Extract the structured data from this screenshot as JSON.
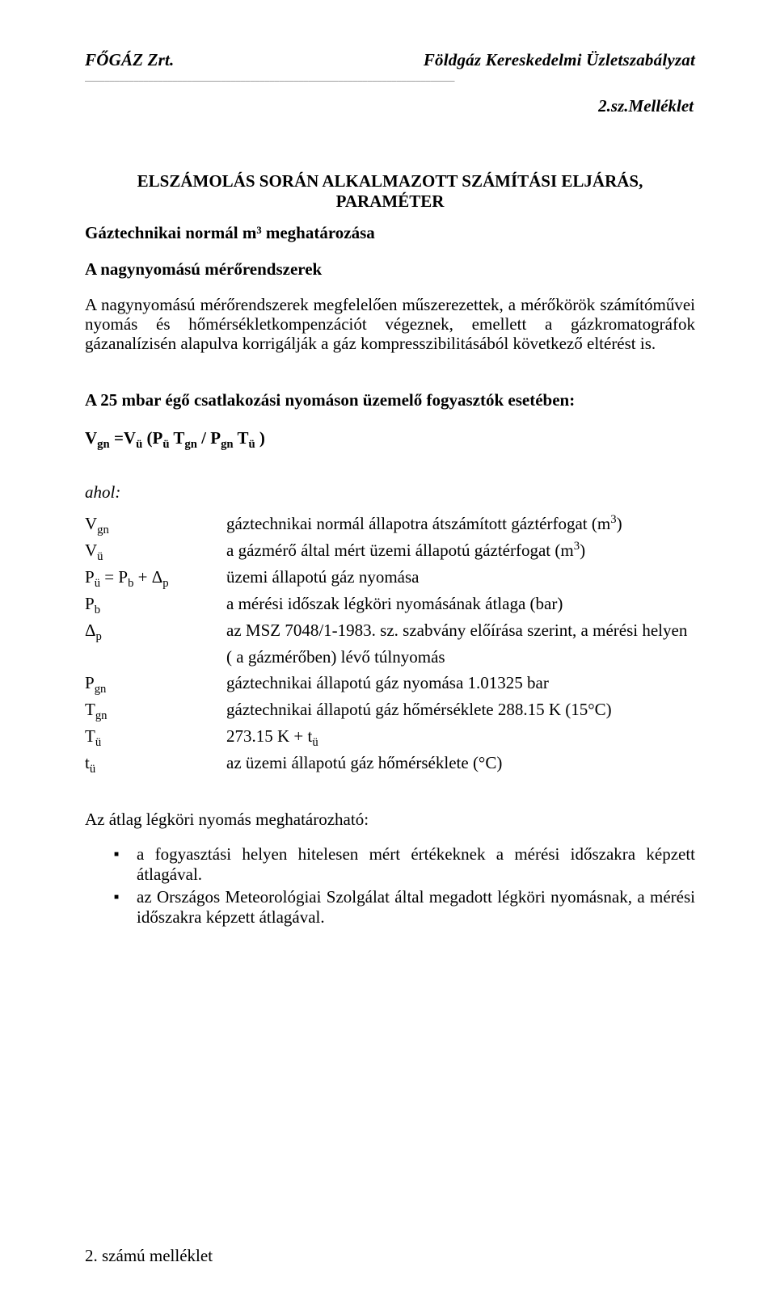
{
  "header": {
    "left": "FŐGÁZ Zrt.",
    "right": "Földgáz Kereskedelmi Üzletszabályzat"
  },
  "attachment_label": "2.sz.Melléklet",
  "title_line1": "ELSZÁMOLÁS SORÁN ALKALMAZOTT SZÁMÍTÁSI ELJÁRÁS,",
  "title_line2": "PARAMÉTER",
  "subtitle": "Gáztechnikai normál m³ meghatározása",
  "section_heading": "A nagynyomású mérőrendszerek",
  "body_para": "A nagynyomású mérőrendszerek megfelelően műszerezettek, a mérőkörök számítóművei nyomás és hőmérsékletkompenzációt végeznek, emellett a gázkromatográfok gázanalízisén alapulva korrigálják a gáz kompresszibilitásából következő eltérést is.",
  "case_heading": "A 25 mbar égő csatlakozási nyomáson üzemelő fogyasztók esetében:",
  "formula": {
    "prefix": "V",
    "s1": "gn",
    "eq": " =V",
    "s2": "ü",
    "open": "  (P",
    "s3": "ü",
    "t1": " T",
    "s4": "gn",
    "div": " / P",
    "s5": "gn",
    "t2": " T",
    "s6": "ü",
    "close": " )"
  },
  "where": "ahol:",
  "defs": [
    {
      "sym_pre": "V",
      "sym_sub": "gn",
      "sym_post": "",
      "desc_pre": "gáztechnikai normál állapotra átszámított gáztérfogat (m",
      "desc_sup": "3",
      "desc_post": ")"
    },
    {
      "sym_pre": "V",
      "sym_sub": "ü",
      "sym_post": "",
      "desc_pre": "a gázmérő által mért üzemi állapotú gáztérfogat (m",
      "desc_sup": "3",
      "desc_post": ")"
    },
    {
      "sym_pre": "P",
      "sym_sub": "ü",
      "sym_mid": " = P",
      "sym_sub2": "b",
      "sym_mid2": " + Δ",
      "sym_sub3": "p",
      "desc": "üzemi állapotú gáz nyomása"
    },
    {
      "sym_pre": "P",
      "sym_sub": "b",
      "desc": "a mérési időszak légköri nyomásának átlaga (bar)"
    },
    {
      "sym_pre": "Δ",
      "sym_sub": "p",
      "desc": "az MSZ 7048/1-1983. sz. szabvány előírása szerint, a mérési helyen",
      "cont": "( a gázmérőben) lévő túlnyomás"
    },
    {
      "sym_pre": "P",
      "sym_sub": "gn",
      "desc": "gáztechnikai állapotú gáz nyomása 1.01325 bar"
    },
    {
      "sym_pre": "T",
      "sym_sub": "gn",
      "desc": "gáztechnikai állapotú gáz hőmérséklete 288.15 K (15°C)"
    },
    {
      "sym_pre": "T",
      "sym_sub": "ü",
      "desc_pre": "273.15 K + t",
      "desc_sub": "ü"
    },
    {
      "sym_pre": "t",
      "sym_sub": "ü",
      "desc": "az üzemi állapotú gáz hőmérséklete (°C)"
    }
  ],
  "avg_heading": "Az átlag légköri nyomás meghatározható:",
  "bullets": [
    "a fogyasztási helyen hitelesen mért értékeknek a mérési időszakra képzett átlagával.",
    "az Országos Meteorológiai Szolgálat által megadott légköri nyomásnak, a mérési időszakra képzett átlagával."
  ],
  "footer": "2. számú melléklet",
  "divider": "____________________________________________________________________________"
}
